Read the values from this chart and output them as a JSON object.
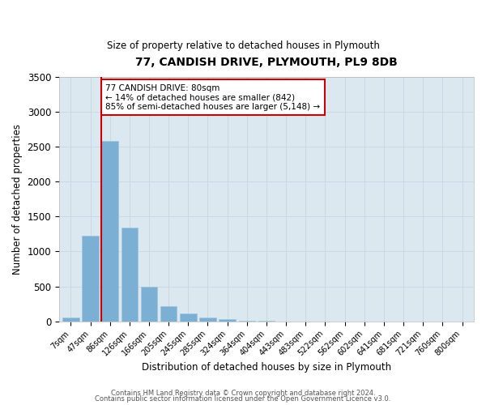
{
  "title": "77, CANDISH DRIVE, PLYMOUTH, PL9 8DB",
  "subtitle": "Size of property relative to detached houses in Plymouth",
  "xlabel": "Distribution of detached houses by size in Plymouth",
  "ylabel": "Number of detached properties",
  "categories": [
    "7sqm",
    "47sqm",
    "86sqm",
    "126sqm",
    "166sqm",
    "205sqm",
    "245sqm",
    "285sqm",
    "324sqm",
    "364sqm",
    "404sqm",
    "443sqm",
    "483sqm",
    "522sqm",
    "562sqm",
    "602sqm",
    "641sqm",
    "681sqm",
    "721sqm",
    "760sqm",
    "800sqm"
  ],
  "values": [
    50,
    1230,
    2580,
    1340,
    490,
    220,
    110,
    50,
    30,
    10,
    5,
    0,
    0,
    0,
    0,
    0,
    0,
    0,
    0,
    0,
    0
  ],
  "bar_color": "#7bafd4",
  "bar_edge_color": "#9fc4df",
  "vline_color": "#cc0000",
  "annotation_text": "77 CANDISH DRIVE: 80sqm\n← 14% of detached houses are smaller (842)\n85% of semi-detached houses are larger (5,148) →",
  "annotation_box_color": "#ffffff",
  "annotation_box_edge_color": "#cc0000",
  "ylim": [
    0,
    3500
  ],
  "yticks": [
    0,
    500,
    1000,
    1500,
    2000,
    2500,
    3000,
    3500
  ],
  "grid_color": "#c8d8e8",
  "background_color": "#dce8f0",
  "footer_line1": "Contains HM Land Registry data © Crown copyright and database right 2024.",
  "footer_line2": "Contains public sector information licensed under the Open Government Licence v3.0."
}
